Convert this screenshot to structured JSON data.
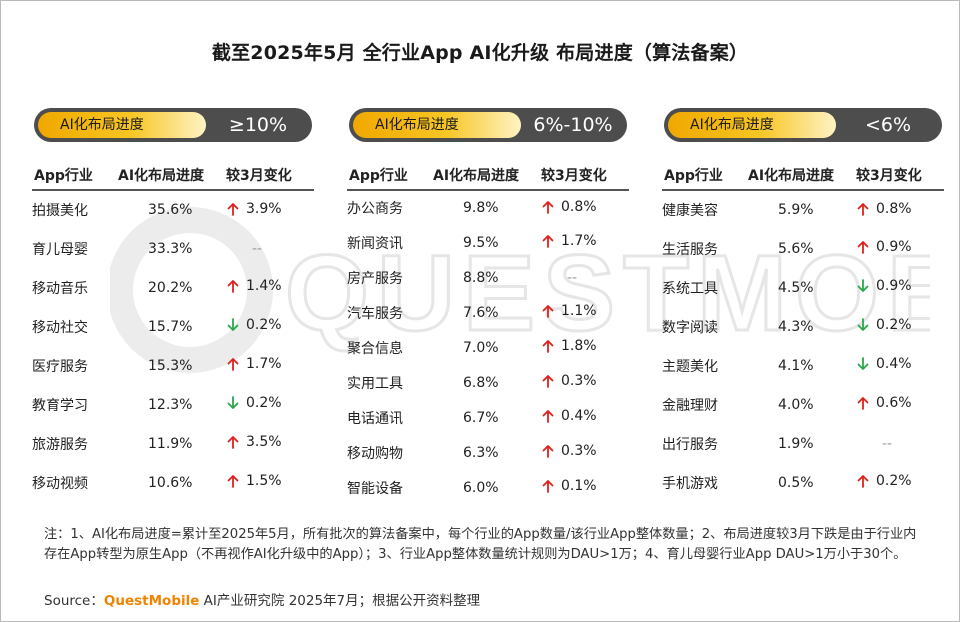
{
  "title": "截至2025年5月 全行业App AI化升级 布局进度（算法备案）",
  "watermark_text": "QUESTMOBILE",
  "colors": {
    "up": "#e0201b",
    "down": "#2aa84a",
    "accent": "#f5b800",
    "badge": "#4d4d4d",
    "brand": "#f08300"
  },
  "chart_data": {
    "type": "table",
    "columns": [
      "App行业",
      "AI化布局进度",
      "较3月变化"
    ],
    "panels": [
      {
        "label": "AI化布局进度",
        "range": "≥10%",
        "rows": [
          {
            "industry": "拍摄美化",
            "progress": "35.6%",
            "dir": "up",
            "change": "3.9%"
          },
          {
            "industry": "育儿母婴",
            "progress": "33.3%",
            "dir": "none",
            "change": "--"
          },
          {
            "industry": "移动音乐",
            "progress": "20.2%",
            "dir": "up",
            "change": "1.4%"
          },
          {
            "industry": "移动社交",
            "progress": "15.7%",
            "dir": "down",
            "change": "0.2%"
          },
          {
            "industry": "医疗服务",
            "progress": "15.3%",
            "dir": "up",
            "change": "1.7%"
          },
          {
            "industry": "教育学习",
            "progress": "12.3%",
            "dir": "down",
            "change": "0.2%"
          },
          {
            "industry": "旅游服务",
            "progress": "11.9%",
            "dir": "up",
            "change": "3.5%"
          },
          {
            "industry": "移动视频",
            "progress": "10.6%",
            "dir": "up",
            "change": "1.5%"
          }
        ]
      },
      {
        "label": "AI化布局进度",
        "range": "6%-10%",
        "rows": [
          {
            "industry": "办公商务",
            "progress": "9.8%",
            "dir": "up",
            "change": "0.8%"
          },
          {
            "industry": "新闻资讯",
            "progress": "9.5%",
            "dir": "up",
            "change": "1.7%"
          },
          {
            "industry": "房产服务",
            "progress": "8.8%",
            "dir": "none",
            "change": "--"
          },
          {
            "industry": "汽车服务",
            "progress": "7.6%",
            "dir": "up",
            "change": "1.1%"
          },
          {
            "industry": "聚合信息",
            "progress": "7.0%",
            "dir": "up",
            "change": "1.8%"
          },
          {
            "industry": "实用工具",
            "progress": "6.8%",
            "dir": "up",
            "change": "0.3%"
          },
          {
            "industry": "电话通讯",
            "progress": "6.7%",
            "dir": "up",
            "change": "0.4%"
          },
          {
            "industry": "移动购物",
            "progress": "6.3%",
            "dir": "up",
            "change": "0.3%"
          },
          {
            "industry": "智能设备",
            "progress": "6.0%",
            "dir": "up",
            "change": "0.1%"
          }
        ]
      },
      {
        "label": "AI化布局进度",
        "range": "<6%",
        "rows": [
          {
            "industry": "健康美容",
            "progress": "5.9%",
            "dir": "up",
            "change": "0.8%"
          },
          {
            "industry": "生活服务",
            "progress": "5.6%",
            "dir": "up",
            "change": "0.9%"
          },
          {
            "industry": "系统工具",
            "progress": "4.5%",
            "dir": "down",
            "change": "0.9%"
          },
          {
            "industry": "数字阅读",
            "progress": "4.3%",
            "dir": "down",
            "change": "0.2%"
          },
          {
            "industry": "主题美化",
            "progress": "4.1%",
            "dir": "down",
            "change": "0.4%"
          },
          {
            "industry": "金融理财",
            "progress": "4.0%",
            "dir": "up",
            "change": "0.6%"
          },
          {
            "industry": "出行服务",
            "progress": "1.9%",
            "dir": "none",
            "change": "--"
          },
          {
            "industry": "手机游戏",
            "progress": "0.5%",
            "dir": "up",
            "change": "0.2%"
          }
        ]
      }
    ]
  },
  "note": "注：1、AI化布局进度=累计至2025年5月，所有批次的算法备案中，每个行业的App数量/该行业App整体数量；2、布局进度较3月下跌是由于行业内存在App转型为原生App（不再视作AI化升级中的App）；3、行业App整体数量统计规则为DAU>1万；4、育儿母婴行业App DAU>1万小于30个。",
  "source": {
    "prefix": "Source：",
    "brand": "QuestMobile",
    "suffix": " AI产业研究院 2025年7月；根据公开资料整理"
  }
}
